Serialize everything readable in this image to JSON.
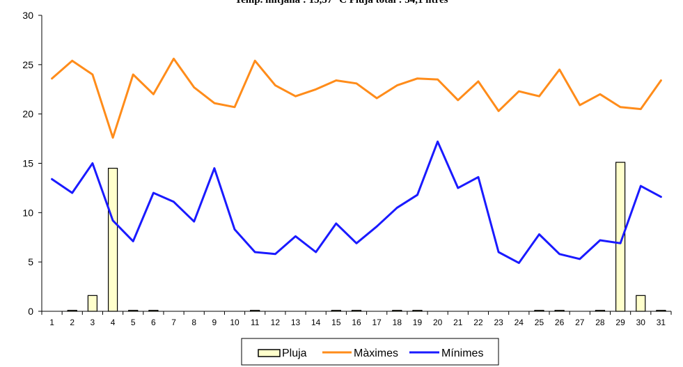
{
  "chart_data": {
    "type": "bar+line",
    "title": "Temp. mitjana : 15,57 °C  Pluja total : 34,1 litres",
    "categories": [
      "1",
      "2",
      "3",
      "4",
      "5",
      "6",
      "7",
      "8",
      "9",
      "10",
      "11",
      "12",
      "13",
      "14",
      "15",
      "16",
      "17",
      "18",
      "19",
      "20",
      "21",
      "22",
      "23",
      "24",
      "25",
      "26",
      "27",
      "28",
      "29",
      "30",
      "31"
    ],
    "ylim": [
      0,
      30
    ],
    "yticks": [
      "0",
      "5",
      "10",
      "15",
      "20",
      "25",
      "30"
    ],
    "grid": false,
    "legend_position": "bottom",
    "series": [
      {
        "name": "Pluja",
        "kind": "bar",
        "color": "#ffffcc",
        "stroke": "#000000",
        "values": [
          0,
          0.1,
          1.6,
          14.5,
          0.1,
          0.1,
          0,
          0,
          0,
          0,
          0.1,
          0,
          0,
          0,
          0.1,
          0.1,
          0,
          0.1,
          0.1,
          0,
          0,
          0,
          0,
          0,
          0.1,
          0.1,
          0,
          0.1,
          15.1,
          1.6,
          0.1
        ]
      },
      {
        "name": "Màximes",
        "kind": "line",
        "color": "#ff8c1a",
        "values": [
          23.6,
          25.4,
          24.0,
          17.6,
          24.0,
          22.0,
          25.6,
          22.7,
          21.1,
          20.7,
          25.4,
          22.9,
          21.8,
          22.5,
          23.4,
          23.1,
          21.6,
          22.9,
          23.6,
          23.5,
          21.4,
          23.3,
          20.3,
          22.3,
          21.8,
          24.5,
          20.9,
          22.0,
          20.7,
          20.5,
          23.4
        ]
      },
      {
        "name": "Mínimes",
        "kind": "line",
        "color": "#1a1aff",
        "values": [
          13.4,
          12.0,
          15.0,
          9.2,
          7.1,
          12.0,
          11.1,
          9.1,
          14.5,
          8.3,
          6.0,
          5.8,
          7.6,
          6.0,
          8.9,
          6.9,
          8.6,
          10.5,
          11.8,
          17.2,
          12.5,
          13.6,
          6.0,
          4.9,
          7.8,
          5.8,
          5.3,
          7.2,
          6.9,
          12.7,
          11.6
        ]
      }
    ]
  }
}
